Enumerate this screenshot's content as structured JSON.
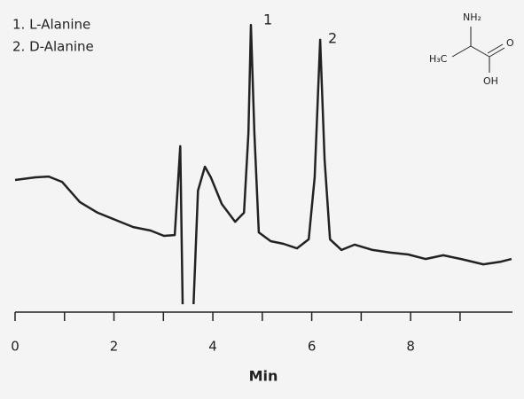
{
  "chart_data": {
    "type": "line",
    "legend_items": [
      "1. L-Alanine",
      "2. D-Alanine"
    ],
    "annotations": [
      "1",
      "2"
    ],
    "xlabel": "Min",
    "structure_labels": [
      "NH₂",
      "H₃C",
      "O",
      "OH"
    ],
    "x": [
      0,
      0.41,
      0.68,
      0.95,
      1.31,
      1.67,
      2.03,
      2.39,
      2.74,
      3.01,
      3.23,
      3.34,
      3.39,
      3.5,
      3.61,
      3.7,
      3.84,
      3.96,
      4.18,
      4.45,
      4.63,
      4.72,
      4.77,
      4.84,
      4.93,
      5.17,
      5.43,
      5.7,
      5.94,
      6.06,
      6.17,
      6.26,
      6.37,
      6.6,
      6.87,
      7.23,
      7.59,
      7.95,
      8.3,
      8.66,
      9.02,
      9.47,
      9.83,
      10.04
    ],
    "series": [
      {
        "color": "#222222",
        "values": [
          49,
          50,
          50.3,
          48.3,
          40.7,
          36.7,
          34,
          31.3,
          30,
          28,
          28.3,
          61.7,
          2.3,
          null,
          2.3,
          45,
          54,
          50,
          40,
          33.3,
          36.7,
          66.7,
          107.3,
          66.7,
          29.3,
          26,
          25,
          23.3,
          26.7,
          50,
          101.7,
          56.7,
          26.7,
          22.7,
          24.7,
          22.7,
          21.7,
          21,
          19.3,
          20.7,
          19.3,
          17.3,
          18.3,
          19.3
        ]
      }
    ],
    "xlim": [
      0,
      10.06
    ],
    "ylim": [
      0,
      110
    ],
    "xticks": [
      0,
      2,
      4,
      6,
      8
    ],
    "xminor": [
      1,
      3,
      5,
      7,
      9
    ]
  }
}
